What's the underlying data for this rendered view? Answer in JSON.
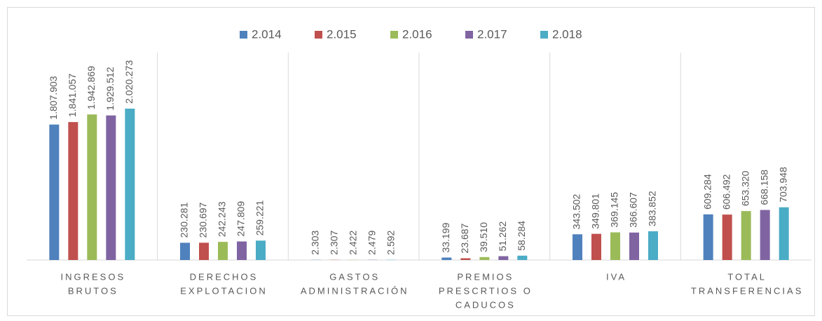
{
  "chart_data": {
    "type": "bar",
    "categories": [
      [
        "INGRESOS",
        "BRUTOS"
      ],
      [
        "DERECHOS",
        "EXPLOTACION"
      ],
      [
        "GASTOS",
        "ADMINISTRACIÓN"
      ],
      [
        "PREMIOS",
        "PRESCRTIOS O",
        "CADUCOS"
      ],
      [
        "IVA"
      ],
      [
        "TOTAL",
        "TRANSFERENCIAS"
      ]
    ],
    "series": [
      {
        "name": "2.014",
        "color": "#4f81bd",
        "values": [
          1807903,
          230281,
          2303,
          33199,
          343502,
          609284
        ],
        "value_labels": [
          "1.807.903",
          "230.281",
          "2.303",
          "33.199",
          "343.502",
          "609.284"
        ]
      },
      {
        "name": "2.015",
        "color": "#c0504d",
        "values": [
          1841057,
          230697,
          2307,
          23687,
          349801,
          606492
        ],
        "value_labels": [
          "1.841.057",
          "230.697",
          "2.307",
          "23.687",
          "349.801",
          "606.492"
        ]
      },
      {
        "name": "2.016",
        "color": "#9bbb59",
        "values": [
          1942869,
          242243,
          2422,
          39510,
          369145,
          653320
        ],
        "value_labels": [
          "1.942.869",
          "242.243",
          "2.422",
          "39.510",
          "369.145",
          "653.320"
        ]
      },
      {
        "name": "2.017",
        "color": "#8064a2",
        "values": [
          1929512,
          247809,
          2479,
          51262,
          366607,
          668158
        ],
        "value_labels": [
          "1.929.512",
          "247.809",
          "2.479",
          "51.262",
          "366.607",
          "668.158"
        ]
      },
      {
        "name": "2.018",
        "color": "#4bacc6",
        "values": [
          2020273,
          259221,
          2592,
          58284,
          383852,
          703948
        ],
        "value_labels": [
          "2.020.273",
          "259.221",
          "2.592",
          "58.284",
          "383.852",
          "703.948"
        ]
      }
    ],
    "legend": "top"
  }
}
